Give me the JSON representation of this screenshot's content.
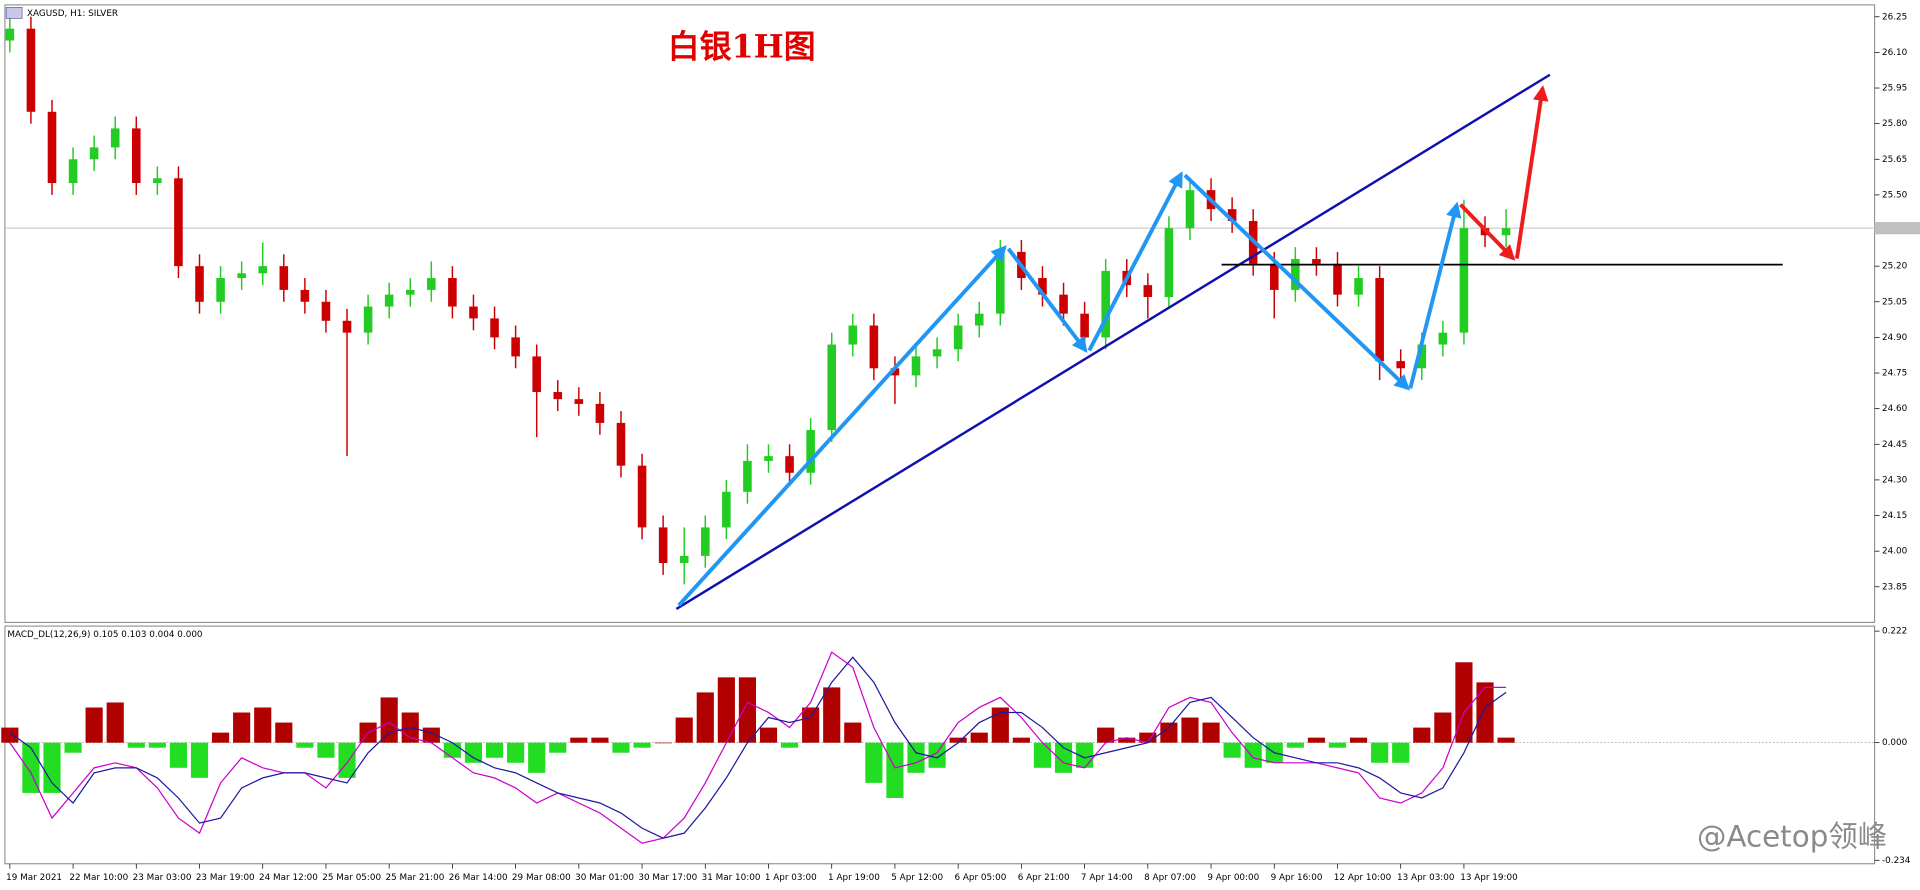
{
  "watermark": "@Acetop领峰",
  "chart_data": [
    {
      "type": "candlestick",
      "title": "白银1H图",
      "subtitle": "XAGUSD, H1: SILVER",
      "categories": [
        "19 Mar 2021",
        null,
        null,
        "22 Mar 10:00",
        null,
        null,
        "23 Mar 03:00",
        null,
        null,
        "23 Mar 19:00",
        null,
        null,
        "24 Mar 12:00",
        null,
        null,
        "25 Mar 05:00",
        null,
        null,
        "25 Mar 21:00",
        null,
        null,
        "26 Mar 14:00",
        null,
        null,
        "29 Mar 08:00",
        null,
        null,
        "30 Mar 01:00",
        null,
        null,
        "30 Mar 17:00",
        null,
        null,
        "31 Mar 10:00",
        null,
        null,
        "1 Apr 03:00",
        null,
        null,
        "1 Apr 19:00",
        null,
        null,
        "5 Apr 12:00",
        null,
        null,
        "6 Apr 05:00",
        null,
        null,
        "6 Apr 21:00",
        null,
        null,
        "7 Apr 14:00",
        null,
        null,
        "8 Apr 07:00",
        null,
        null,
        "9 Apr 00:00",
        null,
        null,
        "9 Apr 16:00",
        null,
        null,
        "12 Apr 10:00",
        null,
        null,
        "13 Apr 03:00",
        null,
        null,
        "13 Apr 19:00",
        null,
        null
      ],
      "open": [
        26.15,
        26.2,
        25.85,
        25.55,
        25.65,
        25.7,
        25.78,
        25.55,
        25.57,
        25.2,
        25.05,
        25.15,
        25.17,
        25.2,
        25.1,
        25.05,
        24.97,
        24.92,
        25.03,
        25.08,
        25.1,
        25.15,
        25.03,
        24.98,
        24.9,
        24.82,
        24.67,
        24.64,
        24.62,
        24.54,
        24.36,
        24.1,
        23.95,
        23.98,
        24.1,
        24.25,
        24.38,
        24.4,
        24.33,
        24.51,
        24.87,
        24.95,
        24.77,
        24.74,
        24.82,
        24.85,
        24.95,
        25.0,
        25.26,
        25.15,
        25.08,
        25.0,
        24.9,
        25.18,
        25.12,
        25.07,
        25.36,
        25.52,
        25.44,
        25.39,
        25.21,
        25.1,
        25.23,
        25.21,
        25.08,
        25.15,
        24.8,
        24.77,
        24.87,
        24.92,
        25.36,
        25.33
      ],
      "high": [
        26.27,
        26.25,
        25.9,
        25.7,
        25.75,
        25.83,
        25.83,
        25.62,
        25.62,
        25.25,
        25.2,
        25.22,
        25.3,
        25.25,
        25.15,
        25.1,
        25.02,
        25.08,
        25.13,
        25.15,
        25.22,
        25.2,
        25.08,
        25.03,
        24.95,
        24.87,
        24.72,
        24.69,
        24.67,
        24.59,
        24.41,
        24.15,
        24.1,
        24.15,
        24.3,
        24.45,
        24.45,
        24.45,
        24.56,
        24.92,
        25.0,
        25.0,
        24.82,
        24.87,
        24.9,
        25.0,
        25.05,
        25.31,
        25.31,
        25.2,
        25.13,
        25.05,
        25.23,
        25.23,
        25.17,
        25.41,
        25.57,
        25.57,
        25.49,
        25.44,
        25.26,
        25.28,
        25.28,
        25.26,
        25.2,
        25.2,
        24.85,
        24.92,
        24.97,
        25.48,
        25.41,
        25.44
      ],
      "low": [
        26.1,
        25.8,
        25.5,
        25.5,
        25.6,
        25.65,
        25.5,
        25.5,
        25.15,
        25.0,
        25.0,
        25.1,
        25.12,
        25.05,
        25.0,
        24.92,
        24.4,
        24.87,
        24.98,
        25.03,
        25.05,
        24.98,
        24.93,
        24.85,
        24.77,
        24.48,
        24.59,
        24.57,
        24.49,
        24.31,
        24.05,
        23.9,
        23.86,
        23.93,
        24.05,
        24.2,
        24.33,
        24.28,
        24.28,
        24.46,
        24.82,
        24.72,
        24.62,
        24.69,
        24.77,
        24.8,
        24.9,
        24.95,
        25.1,
        25.03,
        24.95,
        24.85,
        24.85,
        25.07,
        24.98,
        25.02,
        25.31,
        25.39,
        25.34,
        25.16,
        24.98,
        25.05,
        25.16,
        25.03,
        25.03,
        24.72,
        24.7,
        24.72,
        24.82,
        24.87,
        25.28,
        25.28
      ],
      "close": [
        26.2,
        25.85,
        25.55,
        25.65,
        25.7,
        25.78,
        25.55,
        25.57,
        25.2,
        25.05,
        25.15,
        25.17,
        25.2,
        25.1,
        25.05,
        24.97,
        24.92,
        25.03,
        25.08,
        25.1,
        25.15,
        25.03,
        24.98,
        24.9,
        24.82,
        24.67,
        24.64,
        24.62,
        24.54,
        24.36,
        24.1,
        23.95,
        23.98,
        24.1,
        24.25,
        24.38,
        24.4,
        24.33,
        24.51,
        24.87,
        24.95,
        24.77,
        24.74,
        24.82,
        24.85,
        24.95,
        25.0,
        25.26,
        25.15,
        25.08,
        25.0,
        24.9,
        25.18,
        25.12,
        25.07,
        25.36,
        25.52,
        25.44,
        25.39,
        25.21,
        25.1,
        25.23,
        25.21,
        25.08,
        25.15,
        24.8,
        24.77,
        24.87,
        24.92,
        25.36,
        25.33,
        25.36
      ],
      "up_color": "#22cc22",
      "down_color": "#cc0000",
      "current_price": 25.36,
      "ylim": [
        23.7,
        26.3
      ],
      "yticks": [
        23.85,
        {
          "value": 24.0,
          "label": "24.00"
        },
        24.15,
        {
          "value": 24.3,
          "label": "24.30"
        },
        24.45,
        {
          "value": 24.6,
          "label": "24.60"
        },
        24.75,
        {
          "value": 24.9,
          "label": "24.90"
        },
        25.05,
        {
          "value": 25.2,
          "label": "25.20"
        },
        {
          "value": 25.5,
          "label": "25.50"
        },
        25.65,
        {
          "value": 25.8,
          "label": "25.80"
        },
        25.95,
        {
          "value": 26.1,
          "label": "26.10"
        },
        26.25
      ]
    },
    {
      "type": "bar",
      "title": "MACD_DL(12,26,9) 0.105 0.103 0.004 0.000",
      "values": [
        0.03,
        -0.1,
        -0.1,
        -0.02,
        0.07,
        0.08,
        -0.01,
        -0.01,
        -0.05,
        -0.07,
        0.02,
        0.06,
        0.07,
        0.04,
        -0.01,
        -0.03,
        -0.07,
        0.04,
        0.09,
        0.06,
        0.03,
        -0.03,
        -0.04,
        -0.03,
        -0.04,
        -0.06,
        -0.02,
        0.01,
        0.01,
        -0.02,
        -0.01,
        0.0,
        0.05,
        0.1,
        0.13,
        0.13,
        0.03,
        -0.01,
        0.07,
        0.11,
        0.04,
        -0.08,
        -0.11,
        -0.06,
        -0.05,
        0.01,
        0.02,
        0.07,
        0.01,
        -0.05,
        -0.06,
        -0.05,
        0.03,
        0.01,
        0.02,
        0.04,
        0.05,
        0.04,
        -0.03,
        -0.05,
        -0.04,
        -0.01,
        0.01,
        -0.01,
        0.01,
        -0.04,
        -0.04,
        0.03,
        0.06,
        0.16,
        0.12,
        0.01
      ],
      "up_color": "#b00000",
      "down_color": "#22dd22",
      "series": [
        {
          "color": "#cc00cc",
          "values": [
            0.0,
            -0.06,
            -0.15,
            -0.1,
            -0.05,
            -0.04,
            -0.05,
            -0.09,
            -0.15,
            -0.18,
            -0.08,
            -0.03,
            -0.05,
            -0.06,
            -0.06,
            -0.09,
            -0.04,
            0.02,
            0.04,
            0.01,
            0.0,
            -0.03,
            -0.06,
            -0.07,
            -0.09,
            -0.12,
            -0.1,
            -0.12,
            -0.14,
            -0.17,
            -0.2,
            -0.19,
            -0.15,
            -0.08,
            0.0,
            0.08,
            0.06,
            0.03,
            0.08,
            0.18,
            0.15,
            0.03,
            -0.05,
            -0.04,
            -0.02,
            0.04,
            0.07,
            0.09,
            0.05,
            0.0,
            -0.04,
            -0.05,
            0.0,
            0.01,
            0.0,
            0.07,
            0.09,
            0.08,
            0.02,
            -0.03,
            -0.04,
            -0.04,
            -0.04,
            -0.05,
            -0.06,
            -0.11,
            -0.12,
            -0.1,
            -0.05,
            0.06,
            0.11,
            0.11
          ]
        },
        {
          "color": "#1a1aa0",
          "values": [
            0.02,
            -0.01,
            -0.08,
            -0.12,
            -0.06,
            -0.05,
            -0.05,
            -0.07,
            -0.11,
            -0.16,
            -0.15,
            -0.09,
            -0.07,
            -0.06,
            -0.06,
            -0.07,
            -0.08,
            -0.02,
            0.02,
            0.03,
            0.02,
            0.0,
            -0.03,
            -0.05,
            -0.06,
            -0.08,
            -0.1,
            -0.11,
            -0.12,
            -0.14,
            -0.17,
            -0.19,
            -0.18,
            -0.13,
            -0.07,
            0.0,
            0.05,
            0.04,
            0.05,
            0.12,
            0.17,
            0.12,
            0.04,
            -0.02,
            -0.03,
            0.0,
            0.04,
            0.06,
            0.06,
            0.03,
            -0.01,
            -0.03,
            -0.02,
            -0.01,
            0.0,
            0.03,
            0.08,
            0.09,
            0.05,
            0.01,
            -0.02,
            -0.03,
            -0.04,
            -0.04,
            -0.05,
            -0.07,
            -0.1,
            -0.11,
            -0.09,
            -0.02,
            0.07,
            0.1
          ]
        }
      ],
      "ylim": [
        -0.241,
        0.232
      ],
      "yticks": [
        {
          "value": -0.234,
          "label": "-0.234"
        },
        {
          "value": 0,
          "label": "0.000"
        },
        0.222
      ],
      "zero_line": true
    }
  ]
}
